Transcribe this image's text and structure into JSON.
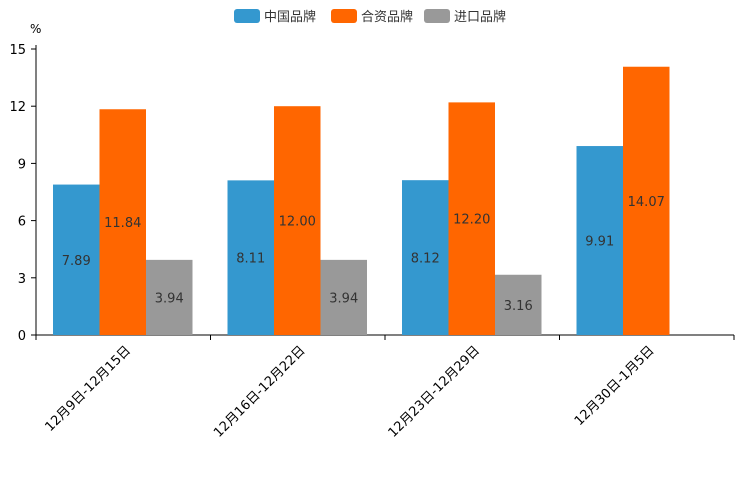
{
  "chart_data": {
    "type": "bar",
    "unit": "%",
    "categories": [
      "12月9日-12月15日",
      "12月16日-12月22日",
      "12月23日-12月29日",
      "12月30日-1月5日"
    ],
    "series": [
      {
        "name": "中国品牌",
        "color": "#3498cf",
        "values": [
          7.89,
          8.11,
          8.12,
          9.91
        ]
      },
      {
        "name": "合资品牌",
        "color": "#ff6600",
        "values": [
          11.84,
          12.0,
          12.2,
          14.07
        ]
      },
      {
        "name": "进口品牌",
        "color": "#999999",
        "values": [
          3.94,
          3.94,
          3.16,
          null
        ]
      }
    ],
    "value_labels": [
      [
        "7.89",
        "8.11",
        "8.12",
        "9.91"
      ],
      [
        "11.84",
        "12.00",
        "12.20",
        "14.07"
      ],
      [
        "3.94",
        "3.94",
        "3.16",
        null
      ]
    ],
    "yticks": [
      "0",
      "3",
      "6",
      "9",
      "12",
      "15"
    ],
    "ylim": [
      0,
      15
    ],
    "legend_position": "top-center",
    "grid": false
  }
}
